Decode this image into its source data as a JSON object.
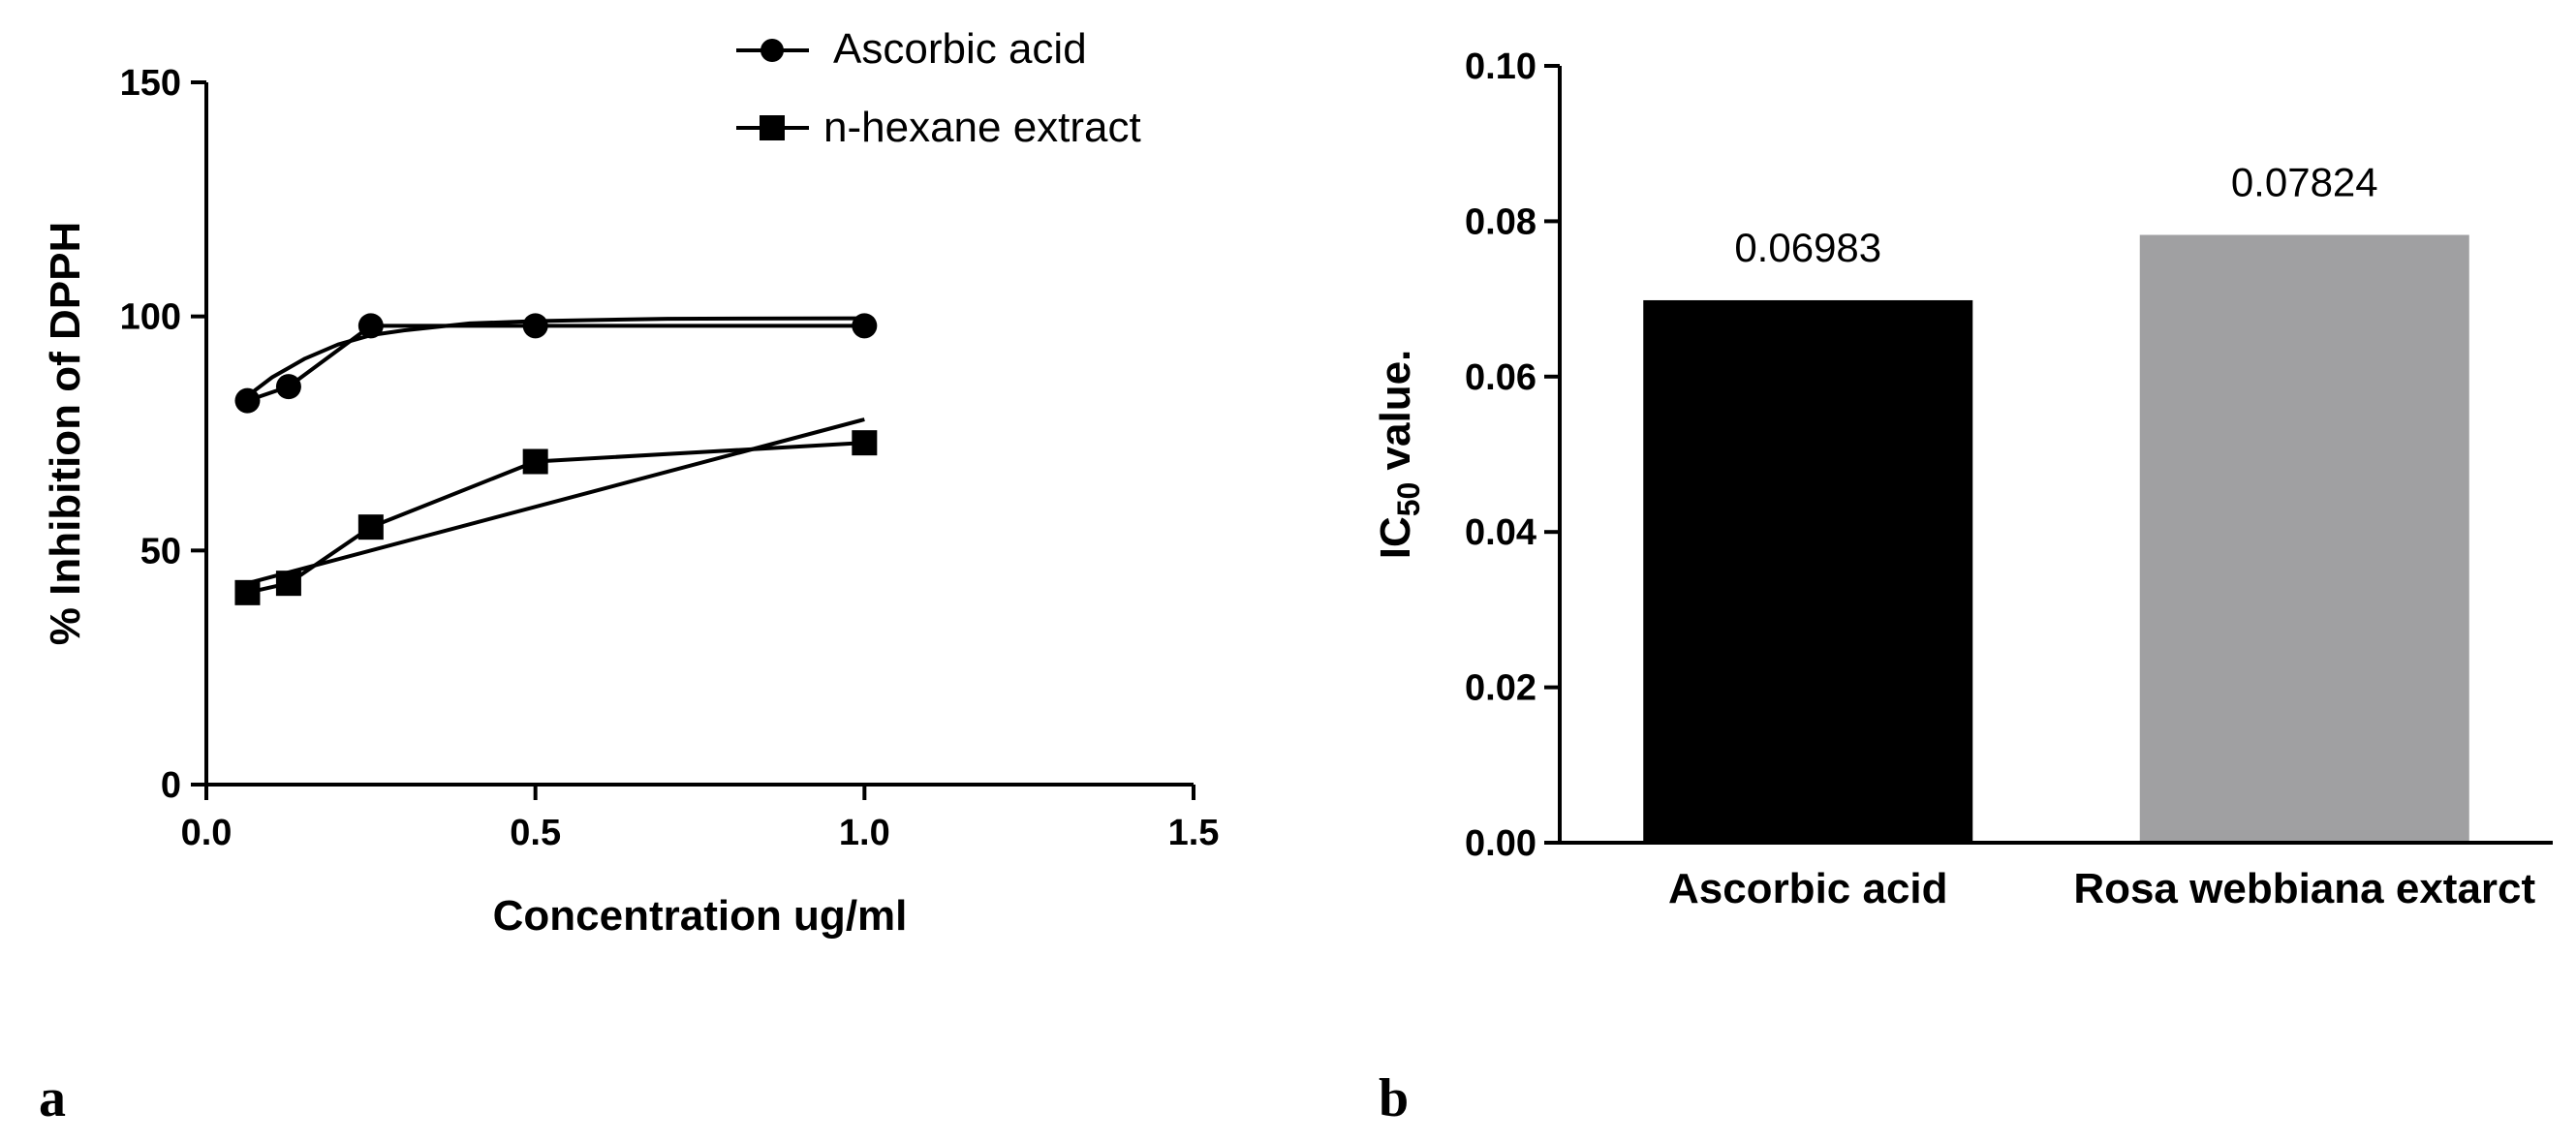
{
  "figure": {
    "panel_labels": [
      "a",
      "b"
    ]
  },
  "chart_data": [
    {
      "type": "line",
      "xlabel": "Concentration ug/ml",
      "ylabel": "% Inhibition of DPPH",
      "xlim": [
        0.0,
        1.5
      ],
      "ylim": [
        0,
        150
      ],
      "xticks": [
        0.0,
        0.5,
        1.0,
        1.5
      ],
      "xtick_labels": [
        "0.0",
        "0.5",
        "1.0",
        "1.5"
      ],
      "yticks": [
        0,
        50,
        100,
        150
      ],
      "ytick_labels": [
        "0",
        "50",
        "100",
        "150"
      ],
      "legend_position": "top-right",
      "grid": false,
      "series": [
        {
          "name": "Ascorbic acid",
          "marker": "circle",
          "color": "#000000",
          "x": [
            0.0625,
            0.125,
            0.25,
            0.5,
            1.0
          ],
          "y": [
            82,
            85,
            98,
            98,
            98
          ],
          "fit": {
            "x": [
              0.0625,
              0.1,
              0.125,
              0.15,
              0.2,
              0.25,
              0.3,
              0.4,
              0.5,
              0.7,
              1.0
            ],
            "y": [
              83,
              87,
              89,
              91,
              94,
              96,
              97,
              98.5,
              99,
              99.5,
              99.6
            ]
          }
        },
        {
          "name": "n-hexane extract",
          "marker": "square",
          "color": "#000000",
          "x": [
            0.0625,
            0.125,
            0.25,
            0.5,
            1.0
          ],
          "y": [
            41,
            43,
            55,
            69,
            73
          ],
          "fit": {
            "x": [
              0.0625,
              1.0
            ],
            "y": [
              43,
              78
            ]
          }
        }
      ]
    },
    {
      "type": "bar",
      "categories": [
        "Ascorbic acid",
        "Rosa webbiana extarct"
      ],
      "values": [
        0.06983,
        0.07824
      ],
      "value_labels": [
        "0.06983",
        "0.07824"
      ],
      "colors": [
        "#000000",
        "#a0a0a2"
      ],
      "ylabel_main": "IC",
      "ylabel_sub": "50",
      "ylabel_rest": " value.",
      "ylim": [
        0.0,
        0.1
      ],
      "yticks": [
        0.0,
        0.02,
        0.04,
        0.06,
        0.08,
        0.1
      ],
      "ytick_labels": [
        "0.00",
        "0.02",
        "0.04",
        "0.06",
        "0.08",
        "0.10"
      ],
      "grid": false
    }
  ]
}
